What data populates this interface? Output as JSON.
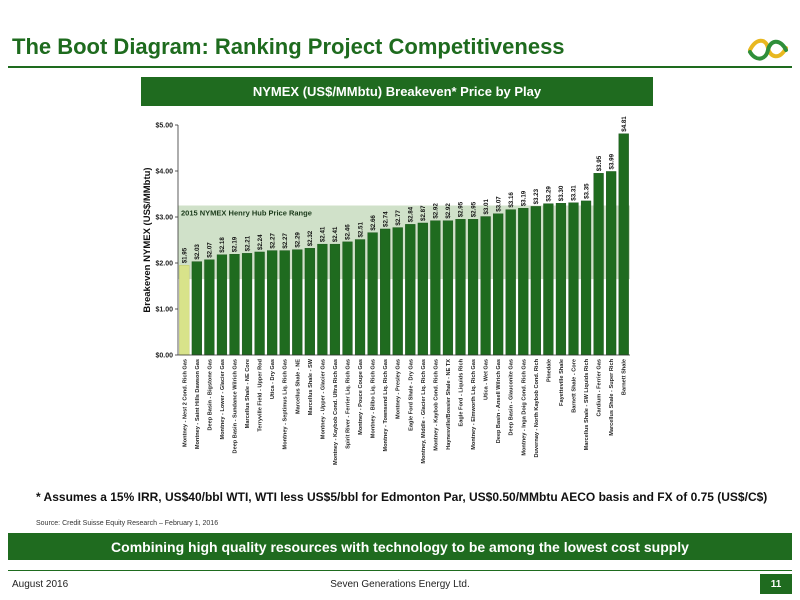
{
  "page": {
    "title": "The Boot Diagram: Ranking Project Competitiveness",
    "footnote": "* Assumes a 15% IRR, US$40/bbl WTI, WTI less US$5/bbl for Edmonton Par, US$0.50/MMbtu AECO basis and FX of 0.75 (US$/C$)",
    "source": "Source: Credit Suisse Equity Research – February 1, 2016",
    "banner": "Combining high quality resources with technology to be among the lowest cost supply",
    "footer_date": "August 2016",
    "footer_company": "Seven Generations Energy Ltd.",
    "page_number": "11",
    "colors": {
      "brand_green": "#1f6b1f",
      "highlight_bar": "#d8e38a",
      "band": "#c8dcc0"
    }
  },
  "chart_data": {
    "type": "bar",
    "title": "NYMEX (US$/MMbtu) Breakeven* Price by Play",
    "ylabel": "Breakeven NYMEX (US$/MMbtu)",
    "xlabel": "",
    "ylim": [
      0,
      5
    ],
    "yticks": [
      "$0.00",
      "$1.00",
      "$2.00",
      "$3.00",
      "$4.00",
      "$5.00"
    ],
    "band": {
      "label": "2015 NYMEX Henry Hub Price Range",
      "low": 1.65,
      "high": 3.25
    },
    "highlight_index": 0,
    "categories": [
      "Montney - Nest 2 Cond. Rich Gas",
      "Montney - Saint Hills Dawson Gas",
      "Deep Basin - Bigstone Gas",
      "Montney - Lower - Glacier Gas",
      "Deep Basin - Sundance Wilrich Gas",
      "Marcellus Shale - NE Core",
      "Terryville Field - Upper Rod",
      "Utica - Dry Gas",
      "Montney - Septimus Liq. Rich Gas",
      "Marcellus Shale - NE",
      "Marcellus Shale - SW",
      "Montney - Upper - Glacier Gas",
      "Montney - Kaybob Cond. Ultra Rich Gas",
      "Spirit River - Ferrier Liq. Rich Gas",
      "Montney - Pouce Coupe Gas",
      "Montney - Bilbo Liq. Rich Gas",
      "Montney - Townsend Liq. Rich Gas",
      "Montney - Presley Gas",
      "Eagle Ford Shale - Dry Gas",
      "Montney, Middle - Glacier Liq. Rich Gas",
      "Montney - Kaybob Cond. Rich Gas",
      "Haynesville/Bossier Shale - NE TX",
      "Eagle Ford - Liquids Rich",
      "Montney - Elmworth Liq. Rich Gas",
      "Utica - Wet Gas",
      "Deep Basin - Ansell Wilrich Gas",
      "Deep Basin - Glauconite Gas",
      "Montney - Inga Doig Cond. Rich Gas",
      "Duvernay - North Kaybob Cond. Rich",
      "Pinedale",
      "Fayetteville Shale",
      "Barnett Shale - Core",
      "Marcellus Shale - SW Liquids Rich",
      "Cardium - Ferrier Gas",
      "Marcellus Shale - Super Rich",
      "Barnett Shale"
    ],
    "values": [
      1.95,
      2.03,
      2.07,
      2.18,
      2.19,
      2.21,
      2.24,
      2.27,
      2.27,
      2.29,
      2.32,
      2.41,
      2.41,
      2.46,
      2.51,
      2.66,
      2.74,
      2.77,
      2.84,
      2.87,
      2.92,
      2.92,
      2.95,
      2.95,
      3.01,
      3.07,
      3.16,
      3.19,
      3.23,
      3.29,
      3.3,
      3.31,
      3.35,
      3.95,
      3.99,
      4.81
    ],
    "value_labels": [
      "$1.95",
      "$2.03",
      "$2.07",
      "$2.18",
      "$2.19",
      "$2.21",
      "$2.24",
      "$2.27",
      "$2.27",
      "$2.29",
      "$2.32",
      "$2.41",
      "$2.41",
      "$2.46",
      "$2.51",
      "$2.66",
      "$2.74",
      "$2.77",
      "$2.84",
      "$2.87",
      "$2.92",
      "$2.92",
      "$2.95",
      "$2.95",
      "$3.01",
      "$3.07",
      "$3.16",
      "$3.19",
      "$3.23",
      "$3.29",
      "$3.30",
      "$3.31",
      "$3.35",
      "$3.95",
      "$3.99",
      "$4.81"
    ]
  }
}
